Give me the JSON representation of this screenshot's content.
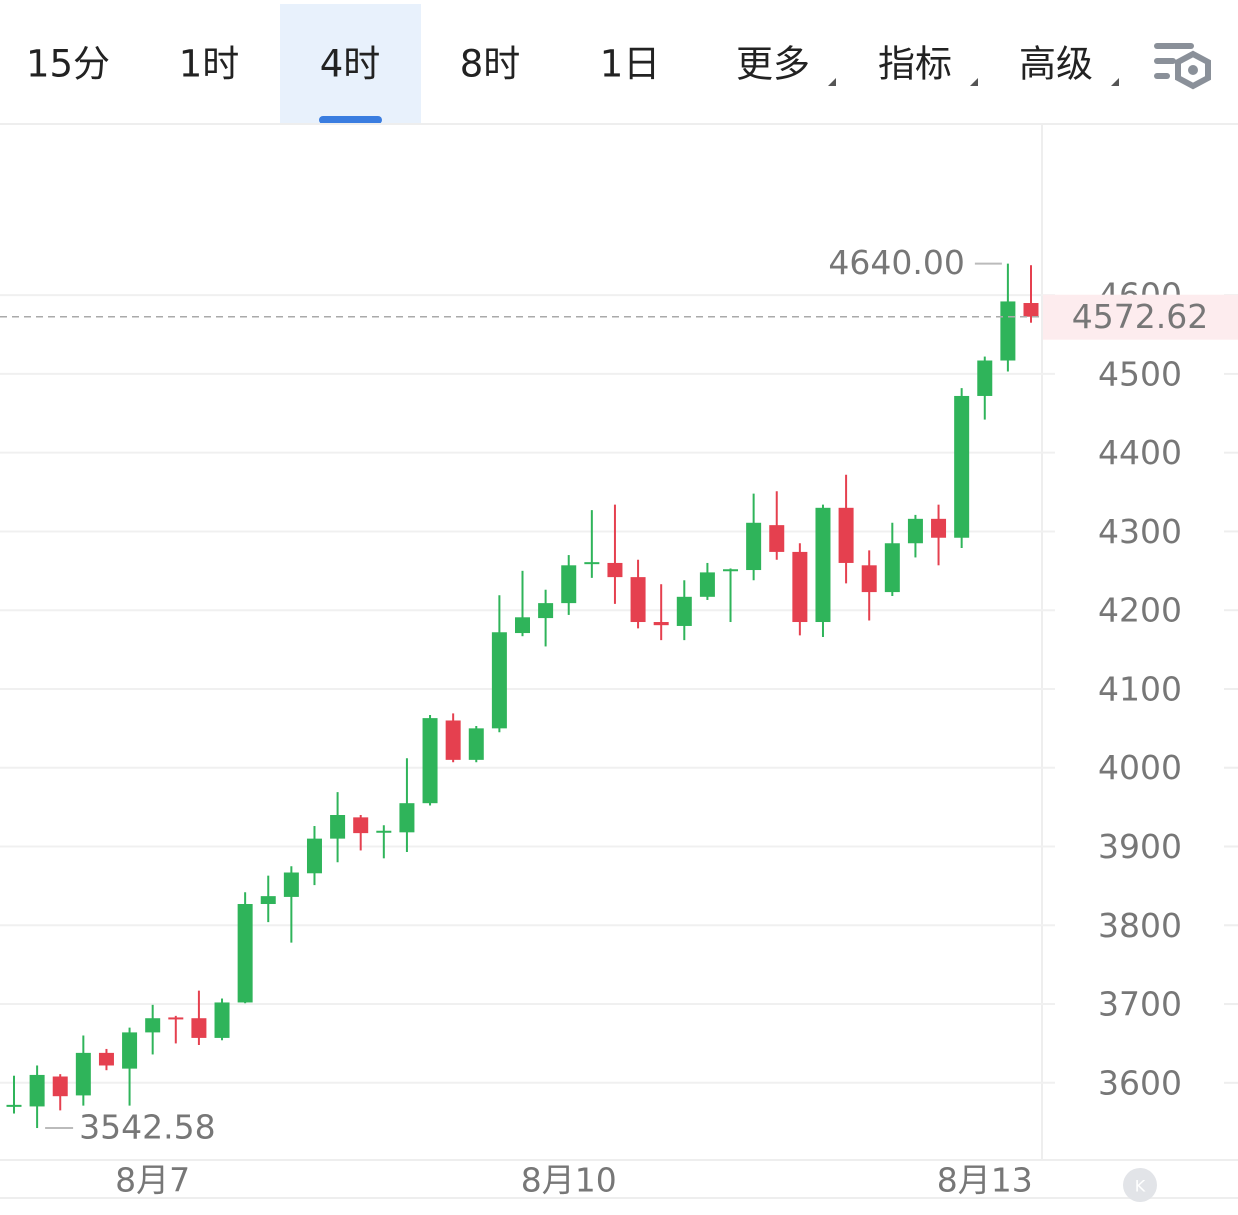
{
  "tabs": [
    "15分",
    "1时",
    "4时",
    "8时",
    "1日",
    "更多",
    "指标",
    "高级"
  ],
  "active_tab": 2,
  "chart_data": {
    "type": "candlestick",
    "up_color": "#2fb45a",
    "down_color": "#e5404f",
    "categories": [
      null,
      null,
      null,
      null,
      null,
      null,
      "8月7",
      null,
      null,
      null,
      null,
      null,
      null,
      null,
      null,
      null,
      null,
      null,
      null,
      null,
      null,
      null,
      null,
      null,
      "8月10",
      null,
      null,
      null,
      null,
      null,
      null,
      null,
      null,
      null,
      null,
      null,
      null,
      null,
      null,
      null,
      null,
      null,
      "8月13",
      null,
      null
    ],
    "open": [
      3570,
      3570,
      3608,
      3584,
      3638,
      3618,
      3664,
      3683,
      3682,
      3657,
      3702,
      3827,
      3836,
      3866,
      3910,
      3937,
      3918,
      3918,
      3955,
      4060,
      4010,
      4050,
      4171,
      4190,
      4209,
      4259,
      4260,
      4242,
      4185,
      4180,
      4217,
      4250,
      4251,
      4308,
      4274,
      4185,
      4330,
      4257,
      4223,
      4285,
      4316,
      4292,
      4472,
      4517,
      4590
    ],
    "high": [
      3609,
      3622,
      3611,
      3660,
      3643,
      3670,
      3699,
      3685,
      3717,
      3707,
      3842,
      3863,
      3875,
      3926,
      3969,
      3940,
      3927,
      4012,
      4067,
      4069,
      4053,
      4219,
      4250,
      4226,
      4270,
      4327,
      4334,
      4264,
      4233,
      4238,
      4260,
      4253,
      4348,
      4351,
      4285,
      4334,
      4372,
      4276,
      4311,
      4321,
      4334,
      4482,
      4522,
      4640,
      4638
    ],
    "low": [
      3561,
      3542.58,
      3565,
      3571,
      3616,
      3571,
      3636,
      3650,
      3648,
      3654,
      3701,
      3804,
      3778,
      3851,
      3880,
      3895,
      3885,
      3893,
      3952,
      4007,
      4007,
      4045,
      4167,
      4154,
      4194,
      4241,
      4208,
      4177,
      4162,
      4162,
      4213,
      4185,
      4238,
      4264,
      4168,
      4166,
      4234,
      4187,
      4218,
      4267,
      4257,
      4279,
      4442,
      4503,
      4565
    ],
    "close": [
      3572,
      3610,
      3583,
      3638,
      3622,
      3664,
      3682,
      3681,
      3657,
      3702,
      3827,
      3837,
      3867,
      3910,
      3940,
      3917,
      3920,
      3955,
      4063,
      4010,
      4050,
      4172,
      4191,
      4209,
      4257,
      4261,
      4242,
      4185,
      4181,
      4217,
      4248,
      4252,
      4311,
      4274,
      4185,
      4330,
      4260,
      4223,
      4285,
      4316,
      4292,
      4472,
      4517,
      4592,
      4572.62
    ],
    "ylim": [
      3502,
      4816
    ],
    "yticks": [
      3600,
      3700,
      3800,
      3900,
      4000,
      4100,
      4200,
      4300,
      4400,
      4500,
      4600
    ],
    "grid": true,
    "max_label": {
      "value": 4640,
      "label": "4640.00"
    },
    "min_label": {
      "value": 3542.58,
      "label": "3542.58"
    },
    "last_price": {
      "value": 4572.62,
      "label": "4572.62"
    }
  }
}
